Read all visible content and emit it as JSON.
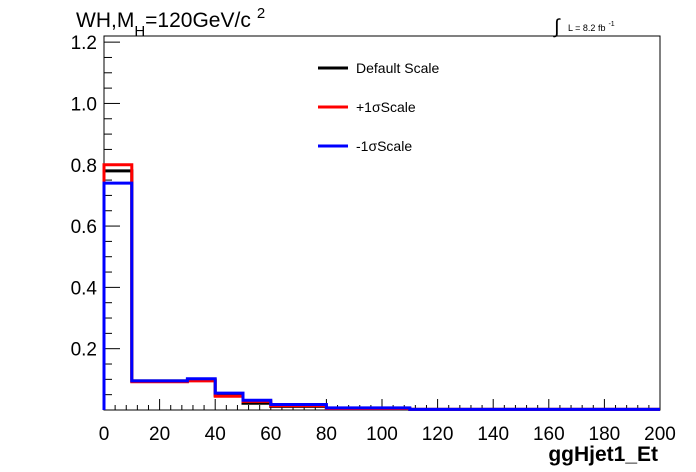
{
  "chart_data": {
    "type": "line",
    "step": true,
    "title": {
      "main": "WH,M",
      "subscript": "H",
      "rest": "=120GeV/c",
      "superscript": "2"
    },
    "luminosity": {
      "integral": "∫",
      "text": "L = 8.2 fb",
      "superscript": "-1"
    },
    "xlabel": "ggHjet1_Et",
    "ylabel": "",
    "xlim": [
      0,
      200
    ],
    "ylim": [
      0,
      1.22
    ],
    "x_ticks": [
      "0",
      "20",
      "40",
      "60",
      "80",
      "100",
      "120",
      "140",
      "160",
      "180",
      "200"
    ],
    "y_ticks": [
      "0.2",
      "0.4",
      "0.6",
      "0.8",
      "1.0",
      "1.2"
    ],
    "bin_edges": [
      0,
      10,
      30,
      40,
      50,
      60,
      80,
      110,
      200
    ],
    "legend_position": "top-center",
    "series": [
      {
        "name": "Default Scale",
        "color": "#000000",
        "values": [
          0.78,
          0.095,
          0.098,
          0.048,
          0.022,
          0.012,
          0.004,
          0.002
        ]
      },
      {
        "name": "+1σScale",
        "color": "#ff0000",
        "values": [
          0.8,
          0.092,
          0.095,
          0.045,
          0.028,
          0.014,
          0.005,
          0.002
        ]
      },
      {
        "name": "-1σScale",
        "color": "#0000ff",
        "values": [
          0.74,
          0.095,
          0.102,
          0.055,
          0.032,
          0.018,
          0.007,
          0.002
        ]
      }
    ]
  }
}
